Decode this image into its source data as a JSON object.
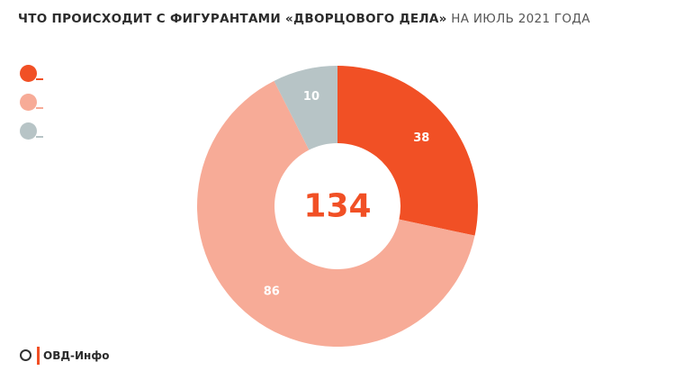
{
  "title": {
    "bold": "ЧТО ПРОИСХОДИТ С ФИГУРАНТАМИ «ДВОРЦОВОГО ДЕЛА»",
    "light": " НА ИЮЛЬ 2021 ГОДА"
  },
  "logo": {
    "text": "ОВД-Инфо"
  },
  "colors": {
    "orange": "#f15025",
    "salmon": "#f7ab97",
    "gray": "#b7c4c6",
    "total": "#f15025"
  },
  "chart_data": {
    "type": "donut",
    "title": "ЧТО ПРОИСХОДИТ С ФИГУРАНТАМИ «ДВОРЦОВОГО ДЕЛА» НА ИЮЛЬ 2021 ГОДА",
    "total": "134",
    "categories": [
      "",
      "",
      ""
    ],
    "values": [
      38,
      86,
      10
    ],
    "labels": [
      "38",
      "86",
      "10"
    ],
    "colors": [
      "#f15025",
      "#f7ab97",
      "#b7c4c6"
    ],
    "legend_placement": "left"
  }
}
